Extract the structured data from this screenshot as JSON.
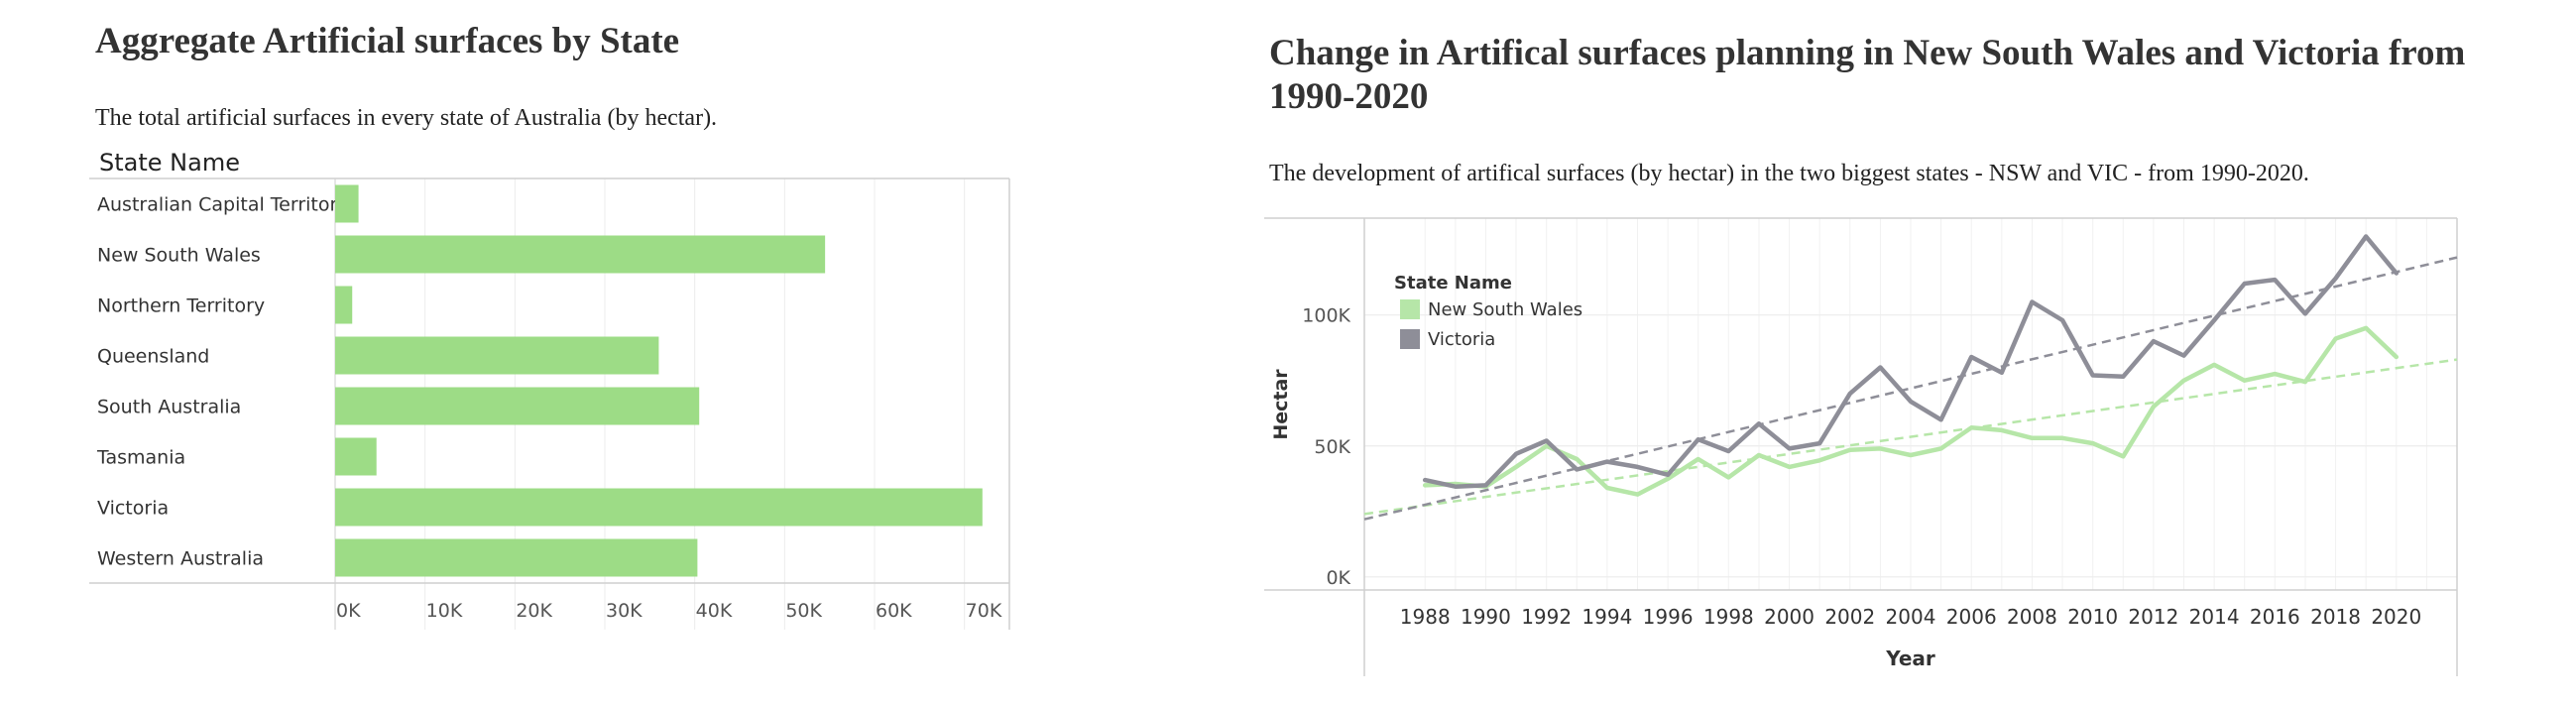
{
  "chart_data": [
    {
      "type": "bar",
      "orientation": "horizontal",
      "title": "Aggregate Artificial surfaces by State",
      "subtitle": "The total artificial surfaces in every state of Australia (by hectar).",
      "row_header": "State Name",
      "categories": [
        "Australian Capital Territory",
        "New South Wales",
        "Northern Territory",
        "Queensland",
        "South Australia",
        "Tasmania",
        "Victoria",
        "Western Australia"
      ],
      "values": [
        2600,
        54500,
        1900,
        36000,
        40500,
        4600,
        72000,
        40300
      ],
      "xlim": [
        0,
        75000
      ],
      "xticks": [
        0,
        10000,
        20000,
        30000,
        40000,
        50000,
        60000,
        70000
      ],
      "xtick_labels": [
        "0K",
        "10K",
        "20K",
        "30K",
        "40K",
        "50K",
        "60K",
        "70K"
      ],
      "color": "#9ddc86",
      "grid": true
    },
    {
      "type": "line",
      "title": "Change in Artifical surfaces planning in New South Wales and Victoria from 1990-2020",
      "subtitle": "The development of artifical surfaces (by hectar) in the two biggest states - NSW and VIC - from 1990-2020.",
      "xlabel": "Year",
      "ylabel": "Hectar",
      "legend_title": "State Name",
      "legend_position": "top-left",
      "x": [
        1988,
        1989,
        1990,
        1991,
        1992,
        1993,
        1994,
        1995,
        1996,
        1997,
        1998,
        1999,
        2000,
        2001,
        2002,
        2003,
        2004,
        2005,
        2006,
        2007,
        2008,
        2009,
        2010,
        2011,
        2012,
        2013,
        2014,
        2015,
        2016,
        2017,
        2018,
        2019,
        2020
      ],
      "xticks": [
        1988,
        1990,
        1992,
        1994,
        1996,
        1998,
        2000,
        2002,
        2004,
        2006,
        2008,
        2010,
        2012,
        2014,
        2016,
        2018,
        2020
      ],
      "xlim": [
        1986,
        2022
      ],
      "ylim": [
        -5000,
        137000
      ],
      "yticks": [
        0,
        50000,
        100000
      ],
      "ytick_labels": [
        "0K",
        "50K",
        "100K"
      ],
      "series": [
        {
          "name": "New South Wales",
          "color": "#b6e6a8",
          "values": [
            35000,
            35500,
            34500,
            42000,
            50000,
            45000,
            34000,
            31500,
            37500,
            45000,
            38000,
            46500,
            42000,
            44500,
            48500,
            49000,
            46500,
            49000,
            57000,
            56000,
            53000,
            53000,
            51000,
            46000,
            65000,
            75000,
            81000,
            75000,
            77500,
            74500,
            91000,
            95000,
            84000
          ]
        },
        {
          "name": "Victoria",
          "color": "#8e8e98",
          "values": [
            37000,
            34500,
            35000,
            47000,
            52000,
            41000,
            44000,
            42000,
            39000,
            52500,
            48000,
            58500,
            49000,
            51000,
            70000,
            80000,
            67000,
            60000,
            84000,
            78000,
            105000,
            98000,
            77000,
            76500,
            90000,
            84500,
            98000,
            112000,
            113500,
            100500,
            114000,
            130000,
            116000
          ]
        }
      ],
      "trendlines": [
        {
          "name": "New South Wales",
          "color": "#b6e6a8",
          "y_at_xmin": 24000,
          "y_at_xmax": 83000
        },
        {
          "name": "Victoria",
          "color": "#8e8e98",
          "y_at_xmin": 22000,
          "y_at_xmax": 122000
        }
      ],
      "grid": true
    }
  ]
}
